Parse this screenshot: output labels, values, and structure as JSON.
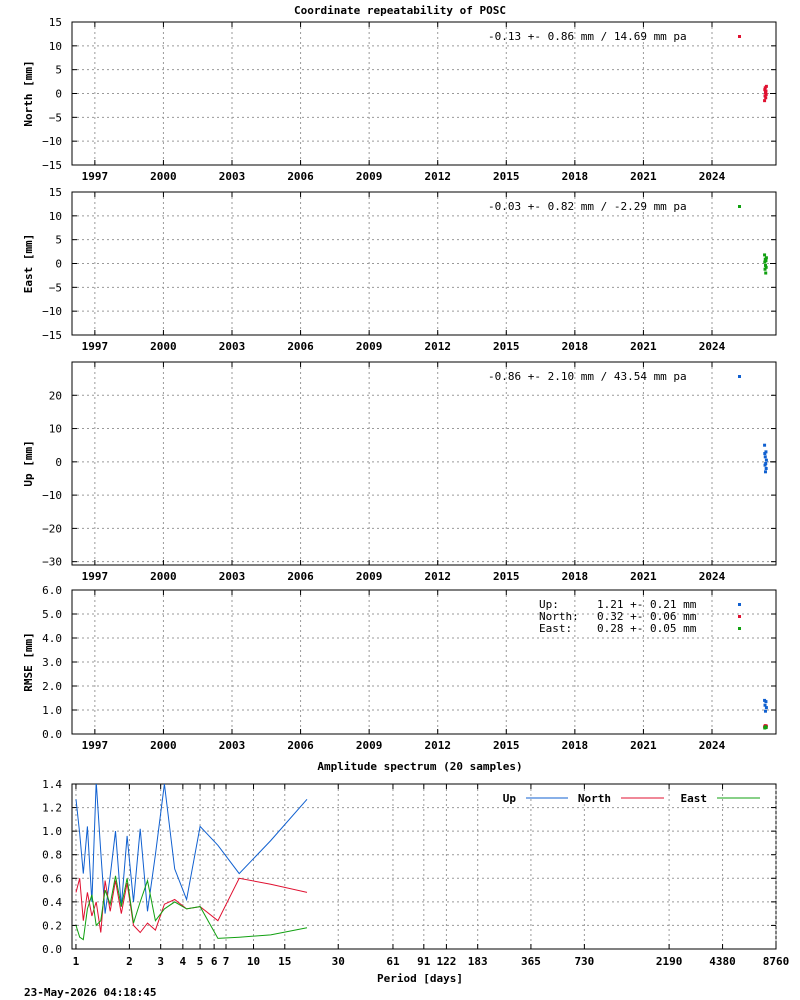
{
  "title": "Coordinate repeatability of POSC",
  "timestamp": "23-May-2026 04:18:45",
  "colors": {
    "north": "#e01030",
    "east": "#10a010",
    "up": "#1060d0",
    "grid": "#9a9a9a"
  },
  "time_panels": [
    {
      "key": "north",
      "ylabel": "North [mm]",
      "stat": "-0.13 +- 0.86 mm / 14.69 mm pa",
      "color": "#e01030",
      "yticks": [
        "15",
        "10",
        "5",
        "0",
        "−5",
        "−10",
        "−15"
      ]
    },
    {
      "key": "east",
      "ylabel": "East [mm]",
      "stat": "-0.03 +- 0.82 mm / -2.29 mm pa",
      "color": "#10a010",
      "yticks": [
        "15",
        "10",
        "5",
        "0",
        "−5",
        "−10",
        "−15"
      ]
    },
    {
      "key": "up",
      "ylabel": "Up [mm]",
      "stat": "-0.86 +- 2.10 mm / 43.54 mm pa",
      "color": "#1060d0",
      "yticks": [
        "20",
        "10",
        "0",
        "−10",
        "−20",
        "−30"
      ]
    },
    {
      "key": "rmse",
      "ylabel": "RMSE [mm]",
      "yticks": [
        "6.0",
        "5.0",
        "4.0",
        "3.0",
        "2.0",
        "1.0",
        "0.0"
      ],
      "legend": [
        {
          "label": "Up:",
          "value": "1.21 +- 0.21 mm",
          "color": "#1060d0"
        },
        {
          "label": "North:",
          "value": "0.32 +- 0.06 mm",
          "color": "#e01030"
        },
        {
          "label": "East:",
          "value": "0.28 +- 0.05 mm",
          "color": "#10a010"
        }
      ]
    }
  ],
  "spectrum": {
    "title": "Amplitude spectrum (20 samples)",
    "xlabel": "Period [days]",
    "yticks": [
      "1.4",
      "1.2",
      "1.0",
      "0.8",
      "0.6",
      "0.4",
      "0.2",
      "0.0"
    ],
    "xticks": [
      "1",
      "2",
      "3",
      "4",
      "5",
      "6",
      "7",
      "10",
      "15",
      "30",
      "61",
      "91",
      "122",
      "183",
      "365",
      "730",
      "2190",
      "4380",
      "8760"
    ],
    "legend": [
      {
        "label": "Up",
        "color": "#1060d0"
      },
      {
        "label": "North",
        "color": "#e01030"
      },
      {
        "label": "East",
        "color": "#10a010"
      }
    ]
  },
  "chart_data": [
    {
      "type": "scatter",
      "title": "Coordinate repeatability of POSC",
      "ylabel": "North [mm]",
      "xlim": [
        1996,
        2026.8
      ],
      "ylim": [
        -15,
        15
      ],
      "x_ticks": [
        1997,
        2000,
        2003,
        2006,
        2009,
        2012,
        2015,
        2018,
        2021,
        2024
      ],
      "y_ticks": [
        15,
        10,
        5,
        0,
        -5,
        -10,
        -15
      ],
      "grid": true,
      "series": [
        {
          "name": "North",
          "x": [
            2026.3,
            2026.31,
            2026.32,
            2026.33,
            2026.34,
            2026.35,
            2026.36,
            2026.37,
            2026.38
          ],
          "y": [
            -1.5,
            0.8,
            -0.5,
            1.2,
            0.2,
            -0.9,
            0.5,
            -0.2,
            1.5
          ]
        }
      ]
    },
    {
      "type": "scatter",
      "ylabel": "East [mm]",
      "xlim": [
        1996,
        2026.8
      ],
      "ylim": [
        -15,
        15
      ],
      "x_ticks": [
        1997,
        2000,
        2003,
        2006,
        2009,
        2012,
        2015,
        2018,
        2021,
        2024
      ],
      "y_ticks": [
        15,
        10,
        5,
        0,
        -5,
        -10,
        -15
      ],
      "grid": true,
      "series": [
        {
          "name": "East",
          "x": [
            2026.3,
            2026.31,
            2026.32,
            2026.33,
            2026.34,
            2026.35,
            2026.36,
            2026.37,
            2026.38
          ],
          "y": [
            1.8,
            0.3,
            -1.2,
            0.9,
            -0.4,
            -2.0,
            0.6,
            -0.8,
            1.2
          ]
        }
      ]
    },
    {
      "type": "scatter",
      "ylabel": "Up [mm]",
      "xlim": [
        1996,
        2026.8
      ],
      "ylim": [
        -31,
        30
      ],
      "x_ticks": [
        1997,
        2000,
        2003,
        2006,
        2009,
        2012,
        2015,
        2018,
        2021,
        2024
      ],
      "y_ticks": [
        20,
        10,
        0,
        -10,
        -20,
        -30
      ],
      "grid": true,
      "series": [
        {
          "name": "Up",
          "x": [
            2026.3,
            2026.31,
            2026.32,
            2026.33,
            2026.34,
            2026.35,
            2026.36,
            2026.37,
            2026.38
          ],
          "y": [
            5,
            2.5,
            -1,
            1.5,
            -3,
            -0.5,
            3,
            -2,
            0.5
          ]
        }
      ]
    },
    {
      "type": "scatter",
      "ylabel": "RMSE [mm]",
      "xlim": [
        1996,
        2026.8
      ],
      "ylim": [
        0,
        6
      ],
      "x_ticks": [
        1997,
        2000,
        2003,
        2006,
        2009,
        2012,
        2015,
        2018,
        2021,
        2024
      ],
      "y_ticks": [
        6,
        5,
        4,
        3,
        2,
        1,
        0
      ],
      "grid": true,
      "series": [
        {
          "name": "Up",
          "x": [
            2026.3,
            2026.32,
            2026.34,
            2026.36,
            2026.38
          ],
          "y": [
            1.4,
            1.2,
            0.95,
            1.35,
            1.1
          ]
        },
        {
          "name": "North",
          "x": [
            2026.3,
            2026.33,
            2026.36,
            2026.38
          ],
          "y": [
            0.3,
            0.35,
            0.28,
            0.33
          ]
        },
        {
          "name": "East",
          "x": [
            2026.31,
            2026.34,
            2026.37
          ],
          "y": [
            0.25,
            0.3,
            0.27
          ]
        }
      ]
    },
    {
      "type": "line",
      "title": "Amplitude spectrum (20 samples)",
      "xlabel": "Period [days]",
      "xscale": "log",
      "ylim": [
        0,
        1.4
      ],
      "y_ticks": [
        1.4,
        1.2,
        1.0,
        0.8,
        0.6,
        0.4,
        0.2,
        0.0
      ],
      "x_ticks": [
        1,
        2,
        3,
        4,
        5,
        6,
        7,
        10,
        15,
        30,
        61,
        91,
        122,
        183,
        365,
        730,
        2190,
        4380,
        8760
      ],
      "grid": true,
      "legend": "top-right",
      "series": [
        {
          "name": "Up",
          "x": [
            1,
            1.05,
            1.1,
            1.16,
            1.23,
            1.3,
            1.38,
            1.46,
            1.56,
            1.67,
            1.8,
            1.94,
            2.11,
            2.3,
            2.53,
            2.8,
            3.15,
            3.6,
            4.2,
            5,
            6.3,
            8.3,
            12.5,
            20
          ],
          "y": [
            1.27,
            0.98,
            0.64,
            1.04,
            0.4,
            1.42,
            0.82,
            0.3,
            0.62,
            1.0,
            0.36,
            0.96,
            0.4,
            1.02,
            0.32,
            0.8,
            1.4,
            0.68,
            0.42,
            1.04,
            0.88,
            0.64,
            0.92,
            1.27
          ]
        },
        {
          "name": "North",
          "x": [
            1,
            1.05,
            1.1,
            1.16,
            1.23,
            1.3,
            1.38,
            1.46,
            1.56,
            1.67,
            1.8,
            1.94,
            2.11,
            2.3,
            2.53,
            2.8,
            3.15,
            3.6,
            4.2,
            5,
            6.3,
            8.3,
            12.5,
            20
          ],
          "y": [
            0.48,
            0.6,
            0.24,
            0.48,
            0.28,
            0.4,
            0.14,
            0.58,
            0.32,
            0.58,
            0.3,
            0.56,
            0.2,
            0.14,
            0.22,
            0.16,
            0.38,
            0.42,
            0.34,
            0.36,
            0.24,
            0.6,
            0.55,
            0.48
          ]
        },
        {
          "name": "East",
          "x": [
            1,
            1.05,
            1.1,
            1.16,
            1.23,
            1.3,
            1.38,
            1.46,
            1.56,
            1.67,
            1.8,
            1.94,
            2.11,
            2.3,
            2.53,
            2.8,
            3.15,
            3.6,
            4.2,
            5,
            6.3,
            8.3,
            12.5,
            20
          ],
          "y": [
            0.2,
            0.1,
            0.08,
            0.34,
            0.46,
            0.2,
            0.24,
            0.5,
            0.38,
            0.62,
            0.36,
            0.6,
            0.22,
            0.4,
            0.58,
            0.24,
            0.34,
            0.4,
            0.34,
            0.36,
            0.09,
            0.1,
            0.12,
            0.18
          ]
        }
      ]
    }
  ]
}
